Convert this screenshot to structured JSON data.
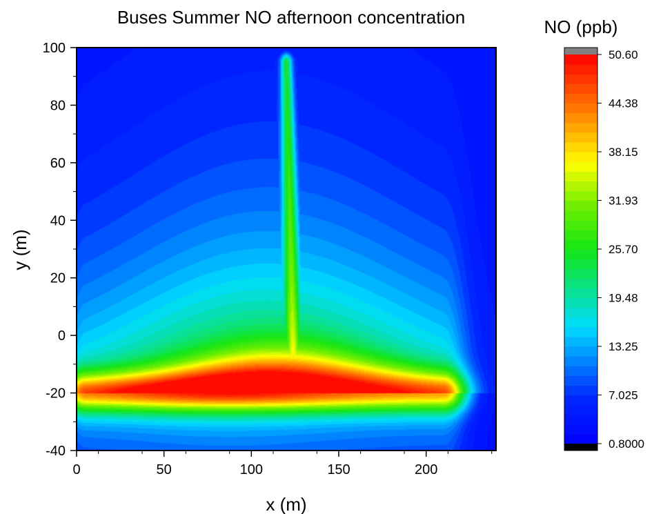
{
  "chart_data": {
    "type": "heatmap",
    "title": "Buses Summer NO afternoon concentration",
    "xlabel": "x (m)",
    "ylabel": "y (m)",
    "xlim": [
      0,
      240
    ],
    "ylim": [
      -40,
      100
    ],
    "x_ticks": [
      "0",
      "50",
      "100",
      "150",
      "200"
    ],
    "x_tick_values": [
      0,
      50,
      100,
      150,
      200
    ],
    "y_ticks": [
      "-40",
      "-20",
      "0",
      "20",
      "40",
      "60",
      "80",
      "100"
    ],
    "y_tick_values": [
      -40,
      -20,
      0,
      20,
      40,
      60,
      80,
      100
    ],
    "colorbar": {
      "title": "NO (ppb)",
      "min": 0.8,
      "max": 50.6,
      "tick_labels": [
        "50.60",
        "44.38",
        "38.15",
        "31.93",
        "25.70",
        "19.48",
        "13.25",
        "7.025",
        "0.8000"
      ],
      "tick_values": [
        50.6,
        44.38,
        38.15,
        31.93,
        25.7,
        19.48,
        13.25,
        7.025,
        0.8
      ],
      "over_color": "#808080",
      "under_color": "#000000",
      "levels": 40
    },
    "field_description": {
      "road_band": {
        "y_center": -20,
        "x_start": 5,
        "x_end": 210,
        "peak_x": 88,
        "peak_value": 50
      },
      "vertical_road": {
        "x_center": 120,
        "y_bottom": -8,
        "y_top": 95,
        "peak_value_low": 48,
        "peak_value_high": 30
      },
      "background": 3
    }
  }
}
